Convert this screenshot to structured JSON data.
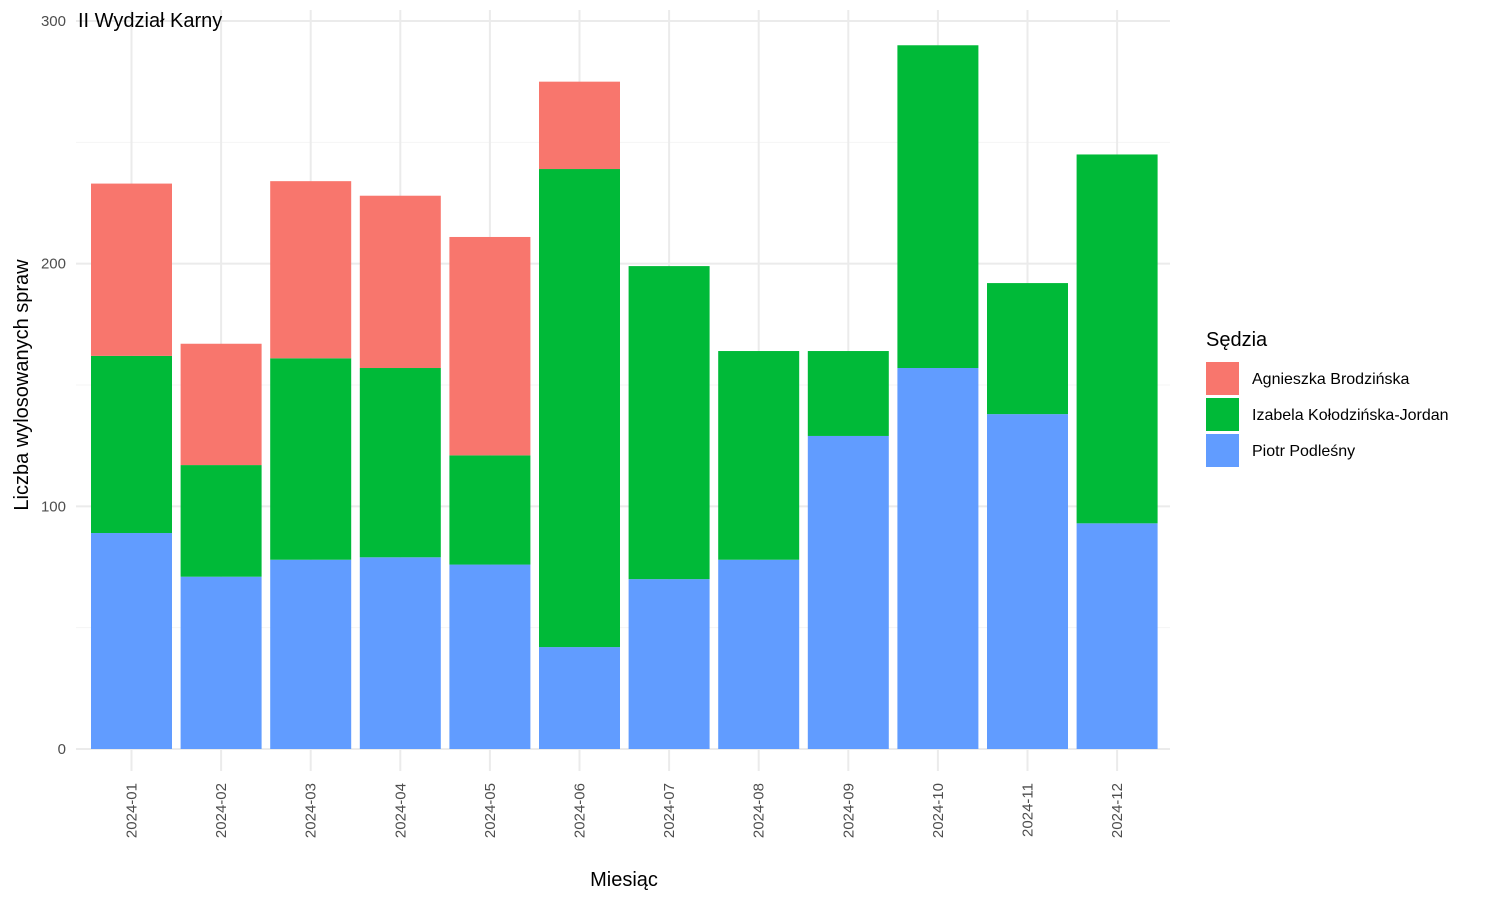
{
  "chart_data": {
    "type": "bar",
    "stacked": true,
    "title": "II Wydział Karny",
    "xlabel": "Miesiąc",
    "ylabel": "Liczba wylosowanych spraw",
    "ylim": [
      0,
      300
    ],
    "yticks": [
      0,
      100,
      200,
      300
    ],
    "grid": true,
    "legend_title": "Sędzia",
    "legend_position": "right",
    "categories": [
      "2024-01",
      "2024-02",
      "2024-03",
      "2024-04",
      "2024-05",
      "2024-06",
      "2024-07",
      "2024-08",
      "2024-09",
      "2024-10",
      "2024-11",
      "2024-12"
    ],
    "series": [
      {
        "name": "Piotr Podleśny",
        "color": "#619CFF",
        "values": [
          89,
          71,
          78,
          79,
          76,
          42,
          70,
          78,
          129,
          157,
          138,
          93
        ]
      },
      {
        "name": "Izabela Kołodzińska-Jordan",
        "color": "#00BA38",
        "values": [
          73,
          46,
          83,
          78,
          45,
          197,
          129,
          86,
          35,
          133,
          54,
          152
        ]
      },
      {
        "name": "Agnieszka Brodzińska",
        "color": "#F8766D",
        "values": [
          71,
          50,
          73,
          71,
          90,
          36,
          0,
          0,
          0,
          0,
          0,
          0
        ]
      }
    ],
    "legend_order": [
      "Agnieszka Brodzińska",
      "Izabela Kołodzińska-Jordan",
      "Piotr Podleśny"
    ]
  }
}
